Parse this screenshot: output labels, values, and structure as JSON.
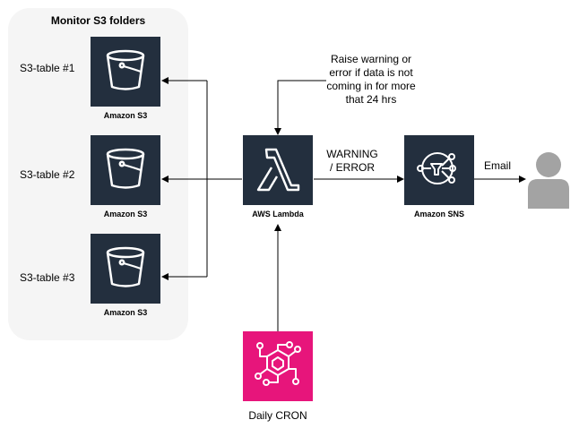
{
  "group": {
    "title": "Monitor S3 folders"
  },
  "tables": [
    {
      "label": "S3-table #1",
      "service": "Amazon S3",
      "icon": "s3-bucket-icon"
    },
    {
      "label": "S3-table #2",
      "service": "Amazon S3",
      "icon": "s3-bucket-icon"
    },
    {
      "label": "S3-table #3",
      "service": "Amazon S3",
      "icon": "s3-bucket-icon"
    }
  ],
  "lambda": {
    "caption": "AWS Lambda",
    "icon": "lambda-icon"
  },
  "sns": {
    "caption": "Amazon SNS",
    "icon": "sns-icon"
  },
  "cron": {
    "caption": "Daily CRON",
    "icon": "eventbridge-icon"
  },
  "annotations": {
    "note": [
      "Raise warning or",
      "error if data is not",
      "coming in for more",
      "that 24 hrs"
    ],
    "edge_warning": [
      "WARNING",
      "/ ERROR"
    ],
    "edge_email": "Email"
  },
  "user": {
    "icon": "user-icon"
  },
  "colors": {
    "aws_dark": "#232f3e",
    "eventbridge": "#e7157b",
    "group_bg": "#f5f5f5",
    "user_gray": "#a3a3a3"
  }
}
